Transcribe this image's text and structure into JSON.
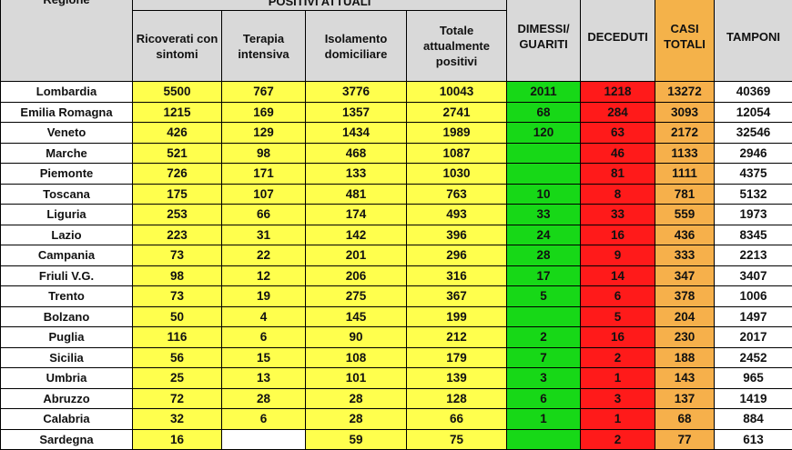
{
  "headers": {
    "region": "Regione",
    "positive_group": "POSITIVI ATTUALI",
    "ricoverati": "Ricoverati con sintomi",
    "terapia": "Terapia intensiva",
    "isolamento": "Isolamento domiciliare",
    "totale": "Totale attualmente positivi",
    "dimessi": "DIMESSI/ GUARITI",
    "deceduti": "DECEDUTI",
    "casi": "CASI TOTALI",
    "tamponi": "TAMPONI"
  },
  "colors": {
    "header_gray": "#d9d9d9",
    "yellow": "#ffff4d",
    "green": "#17d817",
    "red": "#ff1a1a",
    "orange": "#f6b04b"
  },
  "rows": [
    {
      "region": "Lombardia",
      "ricoverati": "5500",
      "terapia": "767",
      "isolamento": "3776",
      "totale": "10043",
      "dimessi": "2011",
      "deceduti": "1218",
      "casi": "13272",
      "tamponi": "40369"
    },
    {
      "region": "Emilia Romagna",
      "ricoverati": "1215",
      "terapia": "169",
      "isolamento": "1357",
      "totale": "2741",
      "dimessi": "68",
      "deceduti": "284",
      "casi": "3093",
      "tamponi": "12054"
    },
    {
      "region": "Veneto",
      "ricoverati": "426",
      "terapia": "129",
      "isolamento": "1434",
      "totale": "1989",
      "dimessi": "120",
      "deceduti": "63",
      "casi": "2172",
      "tamponi": "32546"
    },
    {
      "region": "Marche",
      "ricoverati": "521",
      "terapia": "98",
      "isolamento": "468",
      "totale": "1087",
      "dimessi": "",
      "deceduti": "46",
      "casi": "1133",
      "tamponi": "2946"
    },
    {
      "region": "Piemonte",
      "ricoverati": "726",
      "terapia": "171",
      "isolamento": "133",
      "totale": "1030",
      "dimessi": "",
      "deceduti": "81",
      "casi": "1111",
      "tamponi": "4375"
    },
    {
      "region": "Toscana",
      "ricoverati": "175",
      "terapia": "107",
      "isolamento": "481",
      "totale": "763",
      "dimessi": "10",
      "deceduti": "8",
      "casi": "781",
      "tamponi": "5132"
    },
    {
      "region": "Liguria",
      "ricoverati": "253",
      "terapia": "66",
      "isolamento": "174",
      "totale": "493",
      "dimessi": "33",
      "deceduti": "33",
      "casi": "559",
      "tamponi": "1973"
    },
    {
      "region": "Lazio",
      "ricoverati": "223",
      "terapia": "31",
      "isolamento": "142",
      "totale": "396",
      "dimessi": "24",
      "deceduti": "16",
      "casi": "436",
      "tamponi": "8345"
    },
    {
      "region": "Campania",
      "ricoverati": "73",
      "terapia": "22",
      "isolamento": "201",
      "totale": "296",
      "dimessi": "28",
      "deceduti": "9",
      "casi": "333",
      "tamponi": "2213"
    },
    {
      "region": "Friuli V.G.",
      "ricoverati": "98",
      "terapia": "12",
      "isolamento": "206",
      "totale": "316",
      "dimessi": "17",
      "deceduti": "14",
      "casi": "347",
      "tamponi": "3407"
    },
    {
      "region": "Trento",
      "ricoverati": "73",
      "terapia": "19",
      "isolamento": "275",
      "totale": "367",
      "dimessi": "5",
      "deceduti": "6",
      "casi": "378",
      "tamponi": "1006"
    },
    {
      "region": "Bolzano",
      "ricoverati": "50",
      "terapia": "4",
      "isolamento": "145",
      "totale": "199",
      "dimessi": "",
      "deceduti": "5",
      "casi": "204",
      "tamponi": "1497"
    },
    {
      "region": "Puglia",
      "ricoverati": "116",
      "terapia": "6",
      "isolamento": "90",
      "totale": "212",
      "dimessi": "2",
      "deceduti": "16",
      "casi": "230",
      "tamponi": "2017"
    },
    {
      "region": "Sicilia",
      "ricoverati": "56",
      "terapia": "15",
      "isolamento": "108",
      "totale": "179",
      "dimessi": "7",
      "deceduti": "2",
      "casi": "188",
      "tamponi": "2452"
    },
    {
      "region": "Umbria",
      "ricoverati": "25",
      "terapia": "13",
      "isolamento": "101",
      "totale": "139",
      "dimessi": "3",
      "deceduti": "1",
      "casi": "143",
      "tamponi": "965"
    },
    {
      "region": "Abruzzo",
      "ricoverati": "72",
      "terapia": "28",
      "isolamento": "28",
      "totale": "128",
      "dimessi": "6",
      "deceduti": "3",
      "casi": "137",
      "tamponi": "1419"
    },
    {
      "region": "Calabria",
      "ricoverati": "32",
      "terapia": "6",
      "isolamento": "28",
      "totale": "66",
      "dimessi": "1",
      "deceduti": "1",
      "casi": "68",
      "tamponi": "884"
    },
    {
      "region": "Sardegna",
      "ricoverati": "16",
      "terapia": "",
      "isolamento": "59",
      "totale": "75",
      "dimessi": "",
      "deceduti": "2",
      "casi": "77",
      "tamponi": "613"
    }
  ]
}
